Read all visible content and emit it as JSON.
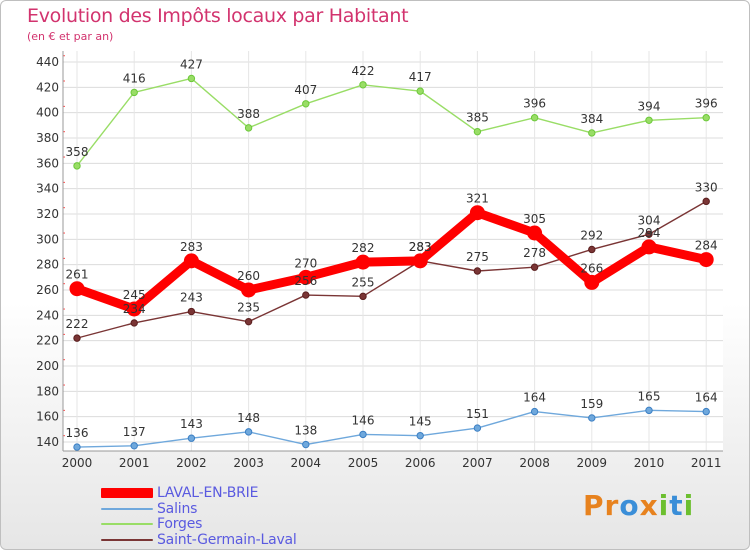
{
  "title": "Evolution des Impôts locaux par Habitant",
  "subtitle": "(en € et par an)",
  "logo": {
    "text": "Proxiti",
    "letters": [
      {
        "ch": "P",
        "color": "#e7821e"
      },
      {
        "ch": "r",
        "color": "#e7821e"
      },
      {
        "ch": "o",
        "color": "#3a8ed8"
      },
      {
        "ch": "x",
        "color": "#e7821e"
      },
      {
        "ch": "i",
        "color": "#6cbf2f"
      },
      {
        "ch": "t",
        "color": "#3a8ed8"
      },
      {
        "ch": "i",
        "color": "#6cbf2f"
      }
    ]
  },
  "chart_data": {
    "type": "line",
    "title": "Evolution des Impôts locaux par Habitant",
    "subtitle": "(en € et par an)",
    "xlabel": "",
    "ylabel": "",
    "ylim": [
      130,
      445
    ],
    "yticks": [
      140,
      160,
      180,
      200,
      220,
      240,
      260,
      280,
      300,
      320,
      340,
      360,
      380,
      400,
      420,
      440
    ],
    "x": [
      "2000",
      "2001",
      "2002",
      "2003",
      "2004",
      "2005",
      "2006",
      "2007",
      "2008",
      "2009",
      "2010",
      "2011"
    ],
    "series": [
      {
        "name": "LAVAL-EN-BRIE",
        "color": "#ff0000",
        "width": "thick",
        "values": [
          261,
          245,
          283,
          260,
          270,
          282,
          283,
          321,
          305,
          266,
          294,
          284
        ]
      },
      {
        "name": "Salins",
        "color": "#6fa8dc",
        "width": "thin",
        "values": [
          136,
          137,
          143,
          148,
          138,
          146,
          145,
          151,
          164,
          159,
          165,
          164
        ]
      },
      {
        "name": "Forges",
        "color": "#99dd66",
        "width": "thin",
        "values": [
          358,
          416,
          427,
          388,
          407,
          422,
          417,
          385,
          396,
          384,
          394,
          396
        ]
      },
      {
        "name": "Saint-Germain-Laval",
        "color": "#7a3535",
        "width": "thin",
        "values": [
          222,
          234,
          243,
          235,
          256,
          255,
          283,
          275,
          278,
          292,
          304,
          330
        ]
      }
    ],
    "legend_position": "bottom-left",
    "grid": true
  }
}
